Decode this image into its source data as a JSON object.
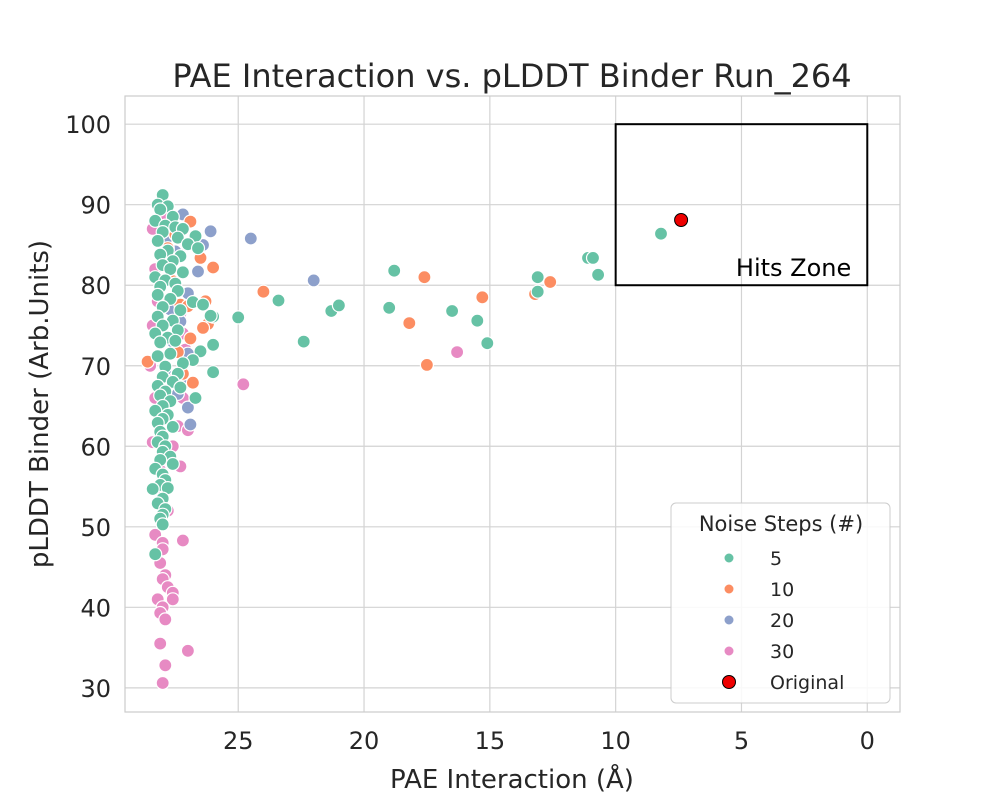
{
  "chart_data": {
    "type": "scatter",
    "title": "PAE Interaction vs. pLDDT Binder Run_264",
    "xlabel": "PAE Interaction (Å)",
    "ylabel": "pLDDT Binder (Arb.Units)",
    "xlim": [
      29.5,
      -1.3
    ],
    "ylim": [
      27.0,
      103.5
    ],
    "x_inverted": true,
    "xticks": [
      25,
      20,
      15,
      10,
      5,
      0
    ],
    "yticks": [
      30,
      40,
      50,
      60,
      70,
      80,
      90,
      100
    ],
    "grid": true,
    "legend": {
      "title": "Noise Steps (#)",
      "placement": "lower-right",
      "entries": [
        "5",
        "10",
        "20",
        "30",
        "Original"
      ]
    },
    "annotation": {
      "label": "Hits Zone",
      "x_range": [
        10,
        0
      ],
      "y_range": [
        80,
        100
      ]
    },
    "colors": {
      "5": "#66c2a5",
      "10": "#fc8d62",
      "20": "#8da0cb",
      "30": "#e78ac3",
      "Original": "#ee0000"
    },
    "series": [
      {
        "name": "30",
        "points": [
          [
            28.4,
            87.0
          ],
          [
            28.3,
            82.0
          ],
          [
            28.2,
            78.0
          ],
          [
            28.4,
            75.0
          ],
          [
            28.5,
            70.0
          ],
          [
            28.3,
            66.0
          ],
          [
            28.2,
            63.0
          ],
          [
            28.4,
            60.5
          ],
          [
            28.1,
            57.0
          ],
          [
            28.0,
            54.5
          ],
          [
            27.8,
            52.0
          ],
          [
            28.1,
            51.0
          ],
          [
            28.3,
            49.0
          ],
          [
            28.0,
            48.0
          ],
          [
            27.2,
            48.3
          ],
          [
            28.0,
            47.2
          ],
          [
            28.1,
            45.5
          ],
          [
            27.9,
            44.0
          ],
          [
            28.0,
            43.5
          ],
          [
            27.8,
            42.5
          ],
          [
            27.6,
            41.8
          ],
          [
            27.6,
            41.0
          ],
          [
            28.2,
            41.0
          ],
          [
            28.0,
            40.0
          ],
          [
            28.1,
            39.3
          ],
          [
            27.9,
            38.5
          ],
          [
            28.1,
            35.5
          ],
          [
            27.9,
            32.8
          ],
          [
            27.0,
            34.6
          ],
          [
            28.0,
            30.6
          ],
          [
            27.3,
            57.5
          ],
          [
            27.6,
            60.0
          ],
          [
            27.4,
            62.5
          ],
          [
            27.2,
            66.0
          ],
          [
            27.5,
            68.5
          ],
          [
            27.1,
            72.0
          ],
          [
            27.3,
            76.5
          ],
          [
            27.6,
            80.5
          ],
          [
            27.4,
            84.0
          ],
          [
            27.9,
            88.5
          ],
          [
            27.0,
            62.0
          ],
          [
            27.2,
            74.0
          ],
          [
            16.3,
            71.7
          ],
          [
            24.8,
            67.7
          ],
          [
            28.0,
            56.0
          ]
        ]
      },
      {
        "name": "20",
        "points": [
          [
            26.1,
            86.7
          ],
          [
            24.5,
            85.8
          ],
          [
            26.4,
            85.0
          ],
          [
            26.6,
            81.7
          ],
          [
            22.0,
            80.6
          ],
          [
            27.2,
            88.8
          ],
          [
            27.5,
            84.2
          ],
          [
            27.0,
            79.0
          ],
          [
            27.3,
            75.5
          ],
          [
            27.0,
            71.5
          ],
          [
            27.1,
            68.0
          ],
          [
            27.0,
            64.8
          ],
          [
            26.9,
            62.7
          ],
          [
            27.6,
            73.0
          ],
          [
            27.4,
            66.5
          ],
          [
            27.8,
            86.0
          ],
          [
            27.7,
            77.0
          ],
          [
            27.9,
            69.5
          ]
        ]
      },
      {
        "name": "10",
        "points": [
          [
            26.9,
            87.9
          ],
          [
            26.5,
            83.4
          ],
          [
            26.0,
            82.2
          ],
          [
            24.0,
            79.2
          ],
          [
            17.6,
            81.0
          ],
          [
            15.3,
            78.5
          ],
          [
            18.2,
            75.3
          ],
          [
            17.5,
            70.1
          ],
          [
            13.2,
            78.9
          ],
          [
            12.6,
            80.4
          ],
          [
            26.3,
            78.0
          ],
          [
            26.2,
            75.2
          ],
          [
            26.4,
            74.7
          ],
          [
            26.9,
            73.4
          ],
          [
            26.8,
            67.9
          ],
          [
            27.5,
            86.3
          ],
          [
            27.6,
            80.5
          ],
          [
            27.3,
            77.6
          ],
          [
            27.4,
            71.7
          ],
          [
            27.2,
            69.0
          ],
          [
            27.0,
            77.4
          ],
          [
            28.6,
            70.5
          ],
          [
            27.8,
            84.6
          ]
        ]
      },
      {
        "name": "5",
        "points": [
          [
            28.0,
            91.2
          ],
          [
            28.2,
            90.0
          ],
          [
            27.8,
            89.8
          ],
          [
            28.1,
            89.4
          ],
          [
            27.6,
            88.5
          ],
          [
            28.3,
            88.0
          ],
          [
            27.9,
            87.4
          ],
          [
            27.5,
            87.2
          ],
          [
            27.2,
            87.0
          ],
          [
            28.0,
            86.6
          ],
          [
            26.7,
            86.1
          ],
          [
            27.4,
            85.9
          ],
          [
            28.2,
            85.5
          ],
          [
            27.0,
            85.1
          ],
          [
            26.6,
            84.6
          ],
          [
            27.8,
            84.3
          ],
          [
            28.1,
            83.8
          ],
          [
            27.3,
            83.6
          ],
          [
            27.6,
            83.0
          ],
          [
            28.0,
            82.5
          ],
          [
            27.7,
            82.0
          ],
          [
            27.2,
            81.6
          ],
          [
            28.3,
            81.0
          ],
          [
            27.9,
            80.6
          ],
          [
            27.5,
            80.2
          ],
          [
            28.1,
            79.8
          ],
          [
            27.4,
            79.3
          ],
          [
            28.2,
            78.8
          ],
          [
            27.7,
            78.3
          ],
          [
            26.8,
            77.9
          ],
          [
            26.4,
            77.6
          ],
          [
            28.0,
            77.3
          ],
          [
            27.3,
            76.9
          ],
          [
            26.0,
            76.1
          ],
          [
            25.0,
            76.0
          ],
          [
            28.2,
            76.1
          ],
          [
            27.6,
            75.6
          ],
          [
            28.0,
            75.0
          ],
          [
            27.4,
            74.4
          ],
          [
            28.3,
            74.0
          ],
          [
            27.8,
            73.5
          ],
          [
            27.5,
            73.1
          ],
          [
            28.1,
            72.9
          ],
          [
            26.0,
            72.6
          ],
          [
            26.5,
            71.8
          ],
          [
            27.7,
            71.5
          ],
          [
            28.2,
            71.2
          ],
          [
            26.8,
            70.7
          ],
          [
            27.2,
            70.3
          ],
          [
            27.9,
            69.9
          ],
          [
            26.0,
            69.2
          ],
          [
            27.4,
            69.0
          ],
          [
            28.0,
            68.6
          ],
          [
            27.6,
            68.0
          ],
          [
            28.2,
            67.5
          ],
          [
            27.3,
            67.3
          ],
          [
            27.9,
            66.8
          ],
          [
            28.1,
            66.3
          ],
          [
            26.7,
            66.0
          ],
          [
            27.7,
            65.6
          ],
          [
            28.0,
            65.0
          ],
          [
            28.3,
            64.4
          ],
          [
            27.8,
            63.9
          ],
          [
            28.0,
            63.4
          ],
          [
            28.2,
            62.9
          ],
          [
            27.6,
            62.4
          ],
          [
            28.1,
            61.8
          ],
          [
            28.0,
            61.2
          ],
          [
            28.2,
            60.5
          ],
          [
            27.9,
            60.0
          ],
          [
            28.0,
            59.3
          ],
          [
            27.7,
            58.7
          ],
          [
            28.1,
            58.3
          ],
          [
            27.6,
            57.8
          ],
          [
            28.3,
            57.2
          ],
          [
            28.0,
            56.5
          ],
          [
            27.9,
            55.8
          ],
          [
            28.1,
            55.2
          ],
          [
            28.4,
            54.7
          ],
          [
            27.8,
            54.8
          ],
          [
            28.0,
            53.5
          ],
          [
            28.2,
            52.9
          ],
          [
            27.9,
            52.2
          ],
          [
            28.0,
            51.5
          ],
          [
            28.1,
            51.0
          ],
          [
            28.0,
            50.3
          ],
          [
            28.3,
            46.6
          ],
          [
            26.1,
            76.2
          ],
          [
            23.4,
            78.1
          ],
          [
            22.4,
            73.0
          ],
          [
            21.3,
            76.8
          ],
          [
            21.0,
            77.5
          ],
          [
            18.8,
            81.8
          ],
          [
            19.0,
            77.2
          ],
          [
            16.5,
            76.8
          ],
          [
            15.5,
            75.6
          ],
          [
            15.1,
            72.8
          ],
          [
            13.1,
            81.0
          ],
          [
            13.1,
            79.2
          ],
          [
            11.1,
            83.4
          ],
          [
            10.9,
            83.4
          ],
          [
            10.7,
            81.3
          ],
          [
            8.2,
            86.4
          ]
        ]
      },
      {
        "name": "Original",
        "points": [
          [
            7.4,
            88.1
          ]
        ]
      }
    ]
  }
}
